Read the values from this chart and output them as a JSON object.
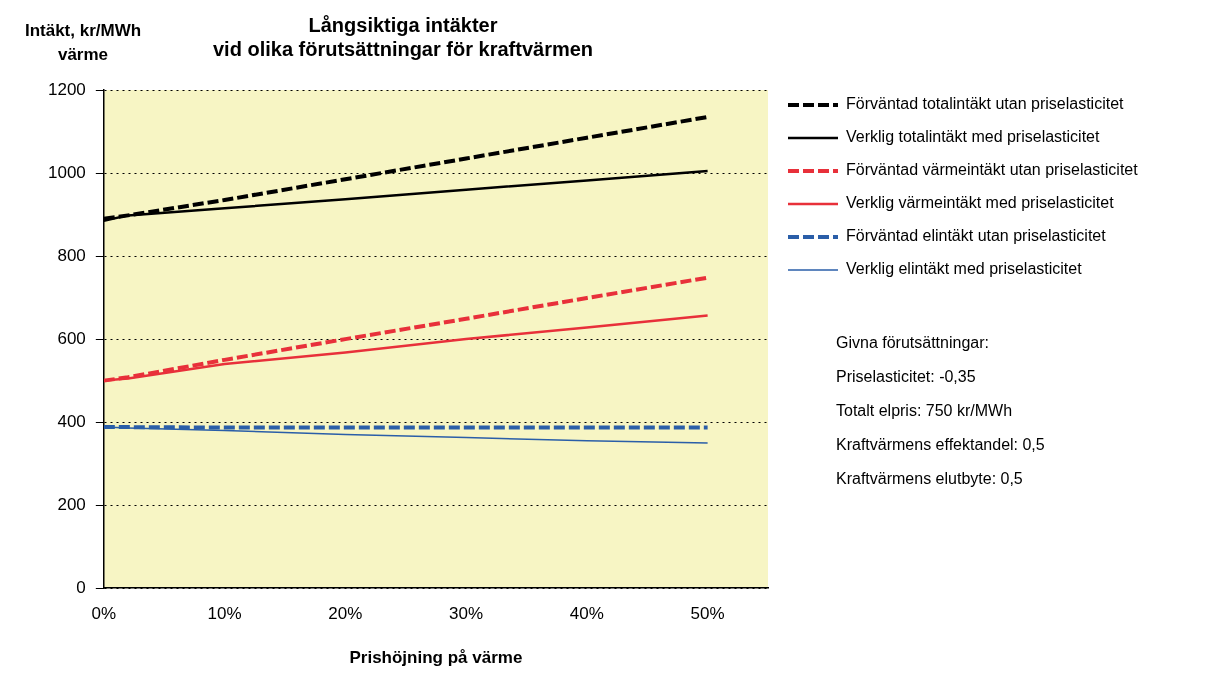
{
  "chart_data": {
    "type": "line",
    "title": "Långsiktiga intäkter\nvid olika förutsättningar för kraftvärmen",
    "xlabel": "Prishöjning på värme",
    "ylabel": "Intäkt, kr/MWh\nvärme",
    "x": [
      0,
      2,
      10,
      20,
      30,
      40,
      50
    ],
    "series": [
      {
        "name": "Förväntad totalintäkt utan priselasticitet",
        "color": "#000000",
        "line_style": "dashed",
        "values": [
          890,
          898,
          935,
          985,
          1035,
          1085,
          1135
        ]
      },
      {
        "name": "Verklig totalintäkt med priselasticitet",
        "color": "#000000",
        "line_style": "solid",
        "values": [
          885,
          898,
          915,
          937,
          960,
          982,
          1005
        ]
      },
      {
        "name": "Förväntad värmeintäkt utan priselasticitet",
        "color": "#e8303a",
        "line_style": "dashed",
        "values": [
          500,
          508,
          550,
          600,
          649,
          699,
          748
        ]
      },
      {
        "name": "Verklig värmeintäkt med priselasticitet",
        "color": "#e8303a",
        "line_style": "solid",
        "values": [
          500,
          505,
          540,
          568,
          600,
          628,
          657
        ]
      },
      {
        "name": "Förväntad elintäkt utan priselasticitet",
        "color": "#2a5ea8",
        "line_style": "dashed",
        "values": [
          388,
          388,
          387,
          387,
          387,
          387,
          387
        ]
      },
      {
        "name": "Verklig elintäkt med priselasticitet",
        "color": "#2a5ea8",
        "line_style": "solid",
        "values": [
          388,
          386,
          380,
          370,
          363,
          355,
          350
        ]
      }
    ],
    "xlim": [
      0,
      55
    ],
    "xticks": [
      {
        "value": 0,
        "label": "0%"
      },
      {
        "value": 10,
        "label": "10%"
      },
      {
        "value": 20,
        "label": "20%"
      },
      {
        "value": 30,
        "label": "30%"
      },
      {
        "value": 40,
        "label": "40%"
      },
      {
        "value": 50,
        "label": "50%"
      }
    ],
    "ylim": [
      0,
      1200
    ],
    "yticks": [
      0,
      200,
      400,
      600,
      800,
      1000,
      1200
    ],
    "grid": "y",
    "legend": "right",
    "marker": "none",
    "annotations": [
      "Givna förutsättningar:",
      "Priselasticitet: -0,35",
      "Totalt elpris: 750 kr/MWh",
      "Kraftvärmens effektandel: 0,5",
      "Kraftvärmens elutbyte: 0,5"
    ]
  }
}
